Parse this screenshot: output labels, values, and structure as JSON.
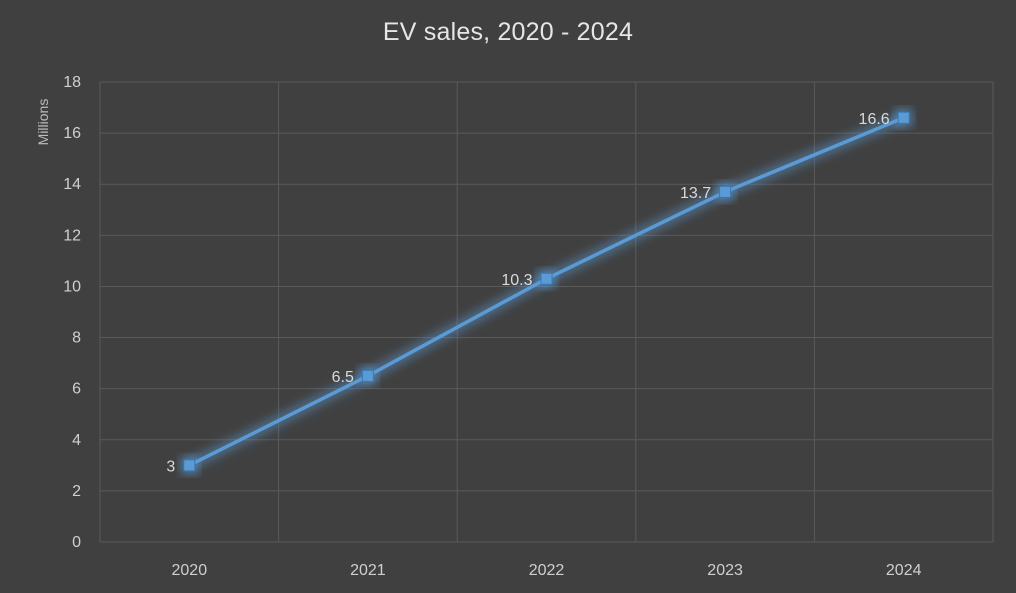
{
  "chart_data": {
    "type": "line",
    "title": "EV sales, 2020 - 2024",
    "xlabel": "",
    "ylabel": "Millions",
    "categories": [
      "2020",
      "2021",
      "2022",
      "2023",
      "2024"
    ],
    "series": [
      {
        "values": [
          3,
          6.5,
          10.3,
          13.7,
          16.6
        ],
        "data_labels": [
          "3",
          "6.5",
          "10.3",
          "13.7",
          "16.6"
        ],
        "color": "#5b9bd5",
        "marker": "square"
      }
    ],
    "ylim": [
      0,
      18
    ],
    "yticks": [
      0,
      2,
      4,
      6,
      8,
      10,
      12,
      14,
      16,
      18
    ],
    "grid": true,
    "legend": "none"
  },
  "colors": {
    "background": "#404040",
    "gridline": "#5a5a5a",
    "series_line": "#5b9bd5",
    "glow": "#5b9bd5",
    "text": "#cfcfcf"
  }
}
